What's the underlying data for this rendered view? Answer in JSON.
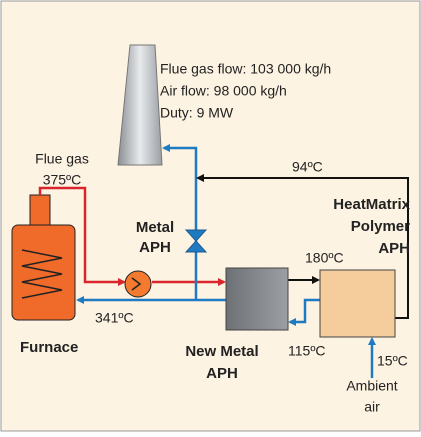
{
  "info": [
    "Flue gas flow: 103 000 kg/h",
    "Air flow: 98 000 kg/h",
    "Duty: 9 MW"
  ],
  "flue_gas": {
    "label": "Flue gas",
    "temp": "375ºC"
  },
  "metal_aph": [
    "Metal",
    "APH"
  ],
  "heatmatrix": [
    "HeatMatrix",
    "Polymer",
    "APH"
  ],
  "new_metal_aph": [
    "New Metal",
    "APH"
  ],
  "furnace": "Furnace",
  "temps": {
    "return": "94ºC",
    "after_polymer": "180ºC",
    "furnace_air": "341ºC",
    "preheated_air": "115ºC",
    "ambient": "15ºC"
  },
  "ambient_air": [
    "Ambient",
    "air"
  ]
}
